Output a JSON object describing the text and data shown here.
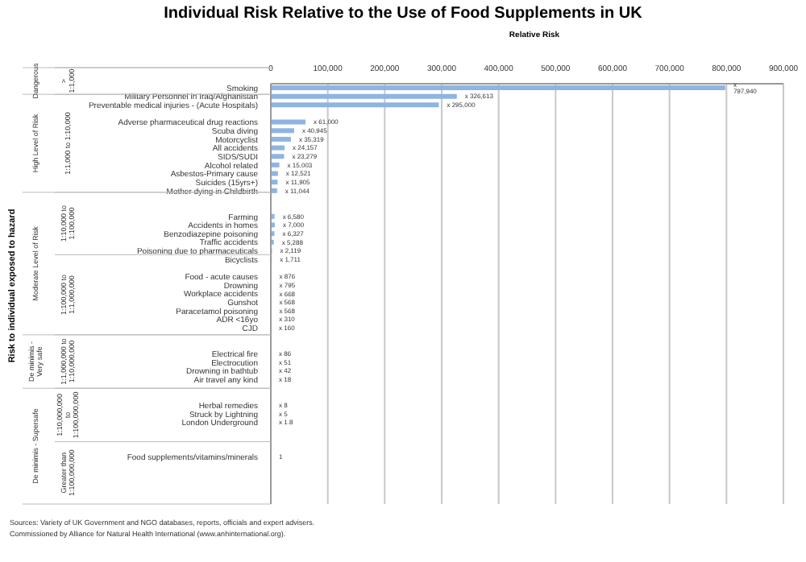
{
  "chart_data": {
    "type": "bar",
    "orientation": "horizontal",
    "title": "Individual Risk Relative to the Use of Food Supplements in UK",
    "xlabel": "Relative Risk",
    "categories": [
      "Smoking",
      "Military Personnel in Iraq/Afghanistan",
      "Preventable medical injuries - (Acute Hospitals)",
      null,
      "Adverse pharmaceutical drug reactions",
      "Scuba diving",
      "Motorcyclist",
      "All accidents",
      "SIDS/SUDI",
      "Alcohol related",
      "Asbestos-Primary cause",
      "Suicides (15yrs+)",
      "Mother dying in Childbirth",
      null,
      null,
      "Farming",
      "Accidents in homes",
      "Benzodiazepine poisoning",
      "Traffic accidents",
      "Poisoning due to pharmaceuticals",
      "Bicyclists",
      null,
      "Food - acute causes",
      "Drowning",
      "Workplace accidents",
      "Gunshot",
      "Paracetamol poisoning",
      "ADR <16yo",
      "CJD",
      null,
      null,
      "Electrical fire",
      "Electrocution",
      "Drowning in bathtub",
      "Air travel any kind",
      null,
      null,
      "Herbal remedies",
      "Struck by Lightning",
      "London Underground",
      null,
      null,
      null,
      "Food supplements/vitamins/minerals",
      null,
      null,
      null,
      null,
      null
    ],
    "values": [
      797940,
      326613,
      295000,
      null,
      61000,
      40945,
      35319,
      24157,
      23279,
      15003,
      12521,
      11905,
      11044,
      null,
      null,
      6580,
      7000,
      6327,
      5288,
      2119,
      1711,
      null,
      876,
      795,
      668,
      568,
      568,
      310,
      160,
      null,
      null,
      86,
      51,
      42,
      18,
      null,
      null,
      8,
      5,
      1.8,
      null,
      null,
      null,
      1,
      null,
      null,
      null,
      null,
      null
    ],
    "value_labels": [
      "x 797,940",
      "x 326,613",
      "x 295,000",
      null,
      "x 61,000",
      "x 40,945",
      "x 35,319",
      "x 24,157",
      "x 23,279",
      "x 15,003",
      "x 12,521",
      "x 11,905",
      "x 11,044",
      null,
      null,
      "x 6,580",
      "x 7,000",
      "x 6,327",
      "x 5,288",
      "x 2,119",
      "x 1,711",
      null,
      "x 876",
      "x 795",
      "x 668",
      "x 568",
      "x 568",
      "x 310",
      "x 160",
      null,
      null,
      "x 86",
      "x 51",
      "x 42",
      "x 18",
      null,
      null,
      "x 8",
      "x 5",
      "x 1.8",
      null,
      null,
      null,
      "1",
      null,
      null,
      null,
      null,
      null
    ],
    "color": "#8eb4e3",
    "xlim": [
      0,
      900000
    ],
    "xticks": [
      0,
      {
        "value": 100000,
        "label": "100,000"
      },
      {
        "value": 200000,
        "label": "200,000"
      },
      {
        "value": 300000,
        "label": "300,000"
      },
      {
        "value": 400000,
        "label": "400,000"
      },
      {
        "value": 500000,
        "label": "500,000"
      },
      {
        "value": 600000,
        "label": "600,000"
      },
      {
        "value": 700000,
        "label": "700,000"
      },
      {
        "value": 800000,
        "label": "800,000"
      },
      {
        "value": 900000,
        "label": "900,000"
      }
    ],
    "grid": "x",
    "annotations": [
      "Dangerous",
      "High Level of Risk",
      "Moderate Level of Risk",
      "De minimis - Very safe",
      "De minimis - Supersafe",
      "> 1:1,000",
      "1:1,000 to 1:10,000",
      "1:10,000 to 1:100,000",
      "1:100,000 to 1:1,000,000",
      "1:1,000,000 to 1:10,000,000",
      "1:10,000,000 to 1:100,000,000",
      "Greater than 1:100,000,000",
      "Risk to individual exposed to hazard",
      "Sources: Variety of UK Government and NGO databases, reports, officials and expert advisers.",
      "Commissioned by Alliance for Natural Health International (www.anhinternational.org)."
    ]
  }
}
